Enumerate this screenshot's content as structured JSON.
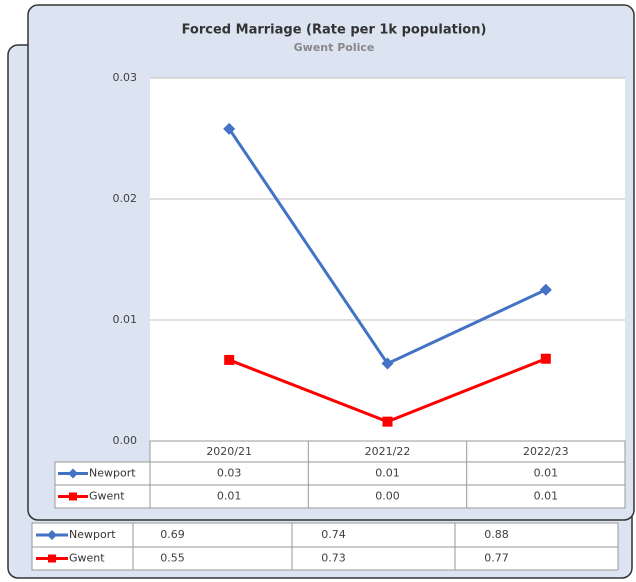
{
  "chart_data": [
    {
      "type": "line",
      "title": "Forced Marriage (Rate per 1k population)",
      "subtitle": "Gwent Police",
      "categories": [
        "2020/21",
        "2021/22",
        "2022/23"
      ],
      "series": [
        {
          "name": "Newport",
          "color": "#4472c4",
          "marker": "diamond",
          "values": [
            0.0258,
            0.0064,
            0.0125
          ],
          "value_labels": [
            "0.03",
            "0.01",
            "0.01"
          ]
        },
        {
          "name": "Gwent",
          "color": "#ff0000",
          "marker": "square",
          "values": [
            0.0067,
            0.0016,
            0.0068
          ],
          "value_labels": [
            "0.01",
            "0.00",
            "0.01"
          ]
        }
      ],
      "ylim": [
        0,
        0.03
      ],
      "yticks": [
        {
          "value": 0,
          "label": "0.00"
        },
        0.01,
        0.02,
        0.03
      ],
      "grid": true
    },
    {
      "type": "table",
      "series": [
        {
          "name": "Newport",
          "color": "#4472c4",
          "marker": "diamond",
          "values": [
            0.69,
            0.74,
            0.88
          ]
        },
        {
          "name": "Gwent",
          "color": "#ff0000",
          "marker": "square",
          "values": [
            0.55,
            0.73,
            0.77
          ]
        }
      ]
    }
  ]
}
